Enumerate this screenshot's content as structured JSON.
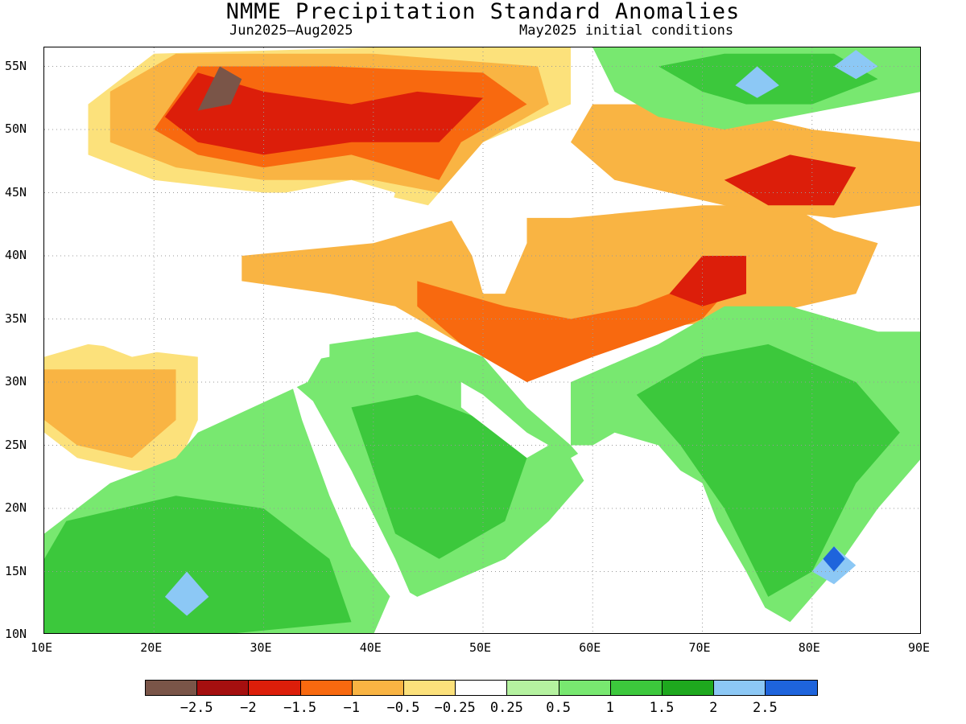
{
  "title": "NMME Precipitation Standard Anomalies",
  "subtitle_left": "Jun2025–Aug2025",
  "subtitle_right": "May2025 initial conditions",
  "axes": {
    "lon_ticks": [
      "10E",
      "20E",
      "30E",
      "40E",
      "50E",
      "60E",
      "70E",
      "80E",
      "90E"
    ],
    "lat_ticks": [
      "55N",
      "50N",
      "45N",
      "40N",
      "35N",
      "30N",
      "25N",
      "20N",
      "15N",
      "10N"
    ],
    "lon_range": [
      10,
      90
    ],
    "lat_range": [
      10,
      56.5
    ],
    "grid": "dotted"
  },
  "colorbar": {
    "colors": [
      "#7a5548",
      "#a50f0f",
      "#dc1e0a",
      "#f8690f",
      "#f9b443",
      "#fce17b",
      "#ffffff",
      "#b5f2a0",
      "#78e870",
      "#3cc83c",
      "#1ea81e",
      "#8cc8f5",
      "#1e64dc"
    ],
    "labels": [
      "−2.5",
      "−2",
      "−1.5",
      "−1",
      "−0.5",
      "−0.25",
      "0.25",
      "0.5",
      "1",
      "1.5",
      "2",
      "2.5"
    ]
  },
  "map_data": {
    "regions": [
      {
        "name": "dry-russia-ukraine",
        "color": "#fce17b",
        "polygon": [
          [
            14,
            52
          ],
          [
            20,
            56
          ],
          [
            40,
            56.5
          ],
          [
            58,
            56.5
          ],
          [
            58,
            52
          ],
          [
            50,
            49
          ],
          [
            45,
            44
          ],
          [
            40,
            45
          ],
          [
            30,
            45
          ],
          [
            20,
            46
          ],
          [
            14,
            48
          ]
        ]
      },
      {
        "name": "dry-russia-core",
        "color": "#f9b443",
        "polygon": [
          [
            16,
            53
          ],
          [
            22,
            56
          ],
          [
            40,
            56
          ],
          [
            55,
            55
          ],
          [
            56,
            52
          ],
          [
            50,
            49
          ],
          [
            46,
            45
          ],
          [
            40,
            46
          ],
          [
            30,
            46
          ],
          [
            22,
            47
          ],
          [
            16,
            49
          ]
        ]
      },
      {
        "name": "dry-east-europe-strong",
        "color": "#f8690f",
        "polygon": [
          [
            20,
            50
          ],
          [
            24,
            55
          ],
          [
            36,
            55
          ],
          [
            50,
            54.5
          ],
          [
            54,
            52
          ],
          [
            48,
            49
          ],
          [
            46,
            46
          ],
          [
            38,
            48
          ],
          [
            30,
            47
          ],
          [
            24,
            48
          ]
        ]
      },
      {
        "name": "dry-east-europe-stronger",
        "color": "#dc1e0a",
        "polygon": [
          [
            21,
            51
          ],
          [
            24,
            54.5
          ],
          [
            30,
            53
          ],
          [
            38,
            52
          ],
          [
            44,
            53
          ],
          [
            50,
            52.5
          ],
          [
            46,
            49
          ],
          [
            38,
            49
          ],
          [
            30,
            48
          ],
          [
            24,
            49
          ]
        ]
      },
      {
        "name": "dry-poland-max",
        "color": "#7a5548",
        "polygon": [
          [
            24,
            51.5
          ],
          [
            26,
            55
          ],
          [
            28,
            54
          ],
          [
            27,
            52
          ]
        ]
      },
      {
        "name": "dry-north-africa",
        "color": "#fce17b",
        "polygon": [
          [
            10,
            32
          ],
          [
            14,
            33
          ],
          [
            24,
            32
          ],
          [
            24,
            27
          ],
          [
            22,
            23
          ],
          [
            18,
            23
          ],
          [
            13,
            24
          ],
          [
            10,
            26
          ]
        ]
      },
      {
        "name": "dry-north-africa-core",
        "color": "#f9b443",
        "polygon": [
          [
            10,
            31
          ],
          [
            14,
            31
          ],
          [
            22,
            31
          ],
          [
            22,
            27
          ],
          [
            18,
            24
          ],
          [
            13,
            25
          ],
          [
            10,
            27
          ]
        ]
      },
      {
        "name": "dry-turkey-iran",
        "color": "#f9b443",
        "polygon": [
          [
            28,
            40
          ],
          [
            40,
            41
          ],
          [
            48,
            43
          ],
          [
            58,
            43
          ],
          [
            70,
            44
          ],
          [
            78,
            44
          ],
          [
            82,
            42
          ],
          [
            86,
            41
          ],
          [
            84,
            37
          ],
          [
            74,
            35
          ],
          [
            62,
            34
          ],
          [
            54,
            31
          ],
          [
            48,
            33
          ],
          [
            42,
            36
          ],
          [
            36,
            37
          ],
          [
            28,
            38
          ]
        ]
      },
      {
        "name": "dry-iran-core",
        "color": "#f8690f",
        "polygon": [
          [
            44,
            38
          ],
          [
            52,
            36
          ],
          [
            58,
            35
          ],
          [
            64,
            36
          ],
          [
            70,
            38
          ],
          [
            72,
            37
          ],
          [
            70,
            35
          ],
          [
            60,
            32
          ],
          [
            54,
            30
          ],
          [
            48,
            33
          ],
          [
            44,
            36
          ]
        ]
      },
      {
        "name": "dry-kazakh",
        "color": "#f9b443",
        "polygon": [
          [
            60,
            52
          ],
          [
            70,
            52
          ],
          [
            80,
            50
          ],
          [
            90,
            49
          ],
          [
            90,
            44
          ],
          [
            82,
            43
          ],
          [
            72,
            44
          ],
          [
            62,
            46
          ],
          [
            58,
            49
          ]
        ]
      },
      {
        "name": "dry-kazakh-strong",
        "color": "#dc1e0a",
        "polygon": [
          [
            72,
            46
          ],
          [
            78,
            48
          ],
          [
            84,
            47
          ],
          [
            82,
            44
          ],
          [
            76,
            44
          ]
        ]
      },
      {
        "name": "dry-tajik",
        "color": "#dc1e0a",
        "polygon": [
          [
            67,
            37
          ],
          [
            70,
            40
          ],
          [
            74,
            40
          ],
          [
            74,
            37
          ],
          [
            70,
            36
          ]
        ]
      },
      {
        "name": "wet-arabia",
        "color": "#78e870",
        "polygon": [
          [
            36,
            33
          ],
          [
            44,
            34
          ],
          [
            50,
            32
          ],
          [
            54,
            28
          ],
          [
            58,
            25
          ],
          [
            60,
            23
          ],
          [
            56,
            19
          ],
          [
            52,
            16
          ],
          [
            44,
            13
          ],
          [
            40,
            15
          ],
          [
            38,
            20
          ],
          [
            36,
            26
          ],
          [
            34,
            30
          ]
        ]
      },
      {
        "name": "wet-arabia-core",
        "color": "#3cc83c",
        "polygon": [
          [
            38,
            28
          ],
          [
            44,
            29
          ],
          [
            50,
            27
          ],
          [
            54,
            24
          ],
          [
            52,
            19
          ],
          [
            46,
            16
          ],
          [
            42,
            18
          ],
          [
            40,
            23
          ]
        ]
      },
      {
        "name": "wet-sudan",
        "color": "#78e870",
        "polygon": [
          [
            24,
            26
          ],
          [
            34,
            30
          ],
          [
            38,
            25
          ],
          [
            40,
            20
          ],
          [
            42,
            14
          ],
          [
            40,
            10
          ],
          [
            20,
            10
          ],
          [
            10,
            10
          ],
          [
            10,
            18
          ],
          [
            16,
            22
          ],
          [
            22,
            24
          ]
        ]
      },
      {
        "name": "wet-sudan-core",
        "color": "#3cc83c",
        "polygon": [
          [
            12,
            19
          ],
          [
            22,
            21
          ],
          [
            30,
            20
          ],
          [
            36,
            16
          ],
          [
            38,
            11
          ],
          [
            26,
            10
          ],
          [
            10,
            10
          ],
          [
            10,
            16
          ]
        ]
      },
      {
        "name": "wet-india",
        "color": "#78e870",
        "polygon": [
          [
            58,
            30
          ],
          [
            66,
            33
          ],
          [
            72,
            36
          ],
          [
            78,
            36
          ],
          [
            86,
            34
          ],
          [
            90,
            34
          ],
          [
            90,
            24
          ],
          [
            86,
            20
          ],
          [
            82,
            15
          ],
          [
            78,
            11
          ],
          [
            74,
            13
          ],
          [
            70,
            22
          ],
          [
            64,
            25
          ],
          [
            58,
            25
          ]
        ]
      },
      {
        "name": "wet-india-core",
        "color": "#3cc83c",
        "polygon": [
          [
            64,
            29
          ],
          [
            70,
            32
          ],
          [
            76,
            33
          ],
          [
            84,
            30
          ],
          [
            88,
            26
          ],
          [
            84,
            22
          ],
          [
            80,
            15
          ],
          [
            76,
            13
          ],
          [
            72,
            20
          ],
          [
            68,
            25
          ]
        ]
      },
      {
        "name": "wet-siberia",
        "color": "#78e870",
        "polygon": [
          [
            60,
            56.5
          ],
          [
            90,
            56.5
          ],
          [
            90,
            53
          ],
          [
            84,
            52
          ],
          [
            78,
            51
          ],
          [
            72,
            50
          ],
          [
            66,
            51
          ],
          [
            62,
            53
          ]
        ]
      },
      {
        "name": "wet-siberia-core",
        "color": "#3cc83c",
        "polygon": [
          [
            66,
            55
          ],
          [
            72,
            56
          ],
          [
            82,
            56
          ],
          [
            86,
            54
          ],
          [
            80,
            52
          ],
          [
            74,
            52
          ],
          [
            70,
            53
          ]
        ]
      },
      {
        "name": "wet-blue-1",
        "color": "#8cc8f5",
        "polygon": [
          [
            80,
            15
          ],
          [
            82,
            17
          ],
          [
            84,
            15.5
          ],
          [
            82,
            14
          ]
        ]
      },
      {
        "name": "wet-blue-2",
        "color": "#8cc8f5",
        "polygon": [
          [
            21,
            13
          ],
          [
            23,
            15
          ],
          [
            25,
            13
          ],
          [
            23,
            11.5
          ]
        ]
      },
      {
        "name": "wet-blue-3",
        "color": "#8cc8f5",
        "polygon": [
          [
            73,
            53.5
          ],
          [
            75,
            55
          ],
          [
            77,
            53.5
          ],
          [
            75,
            52.5
          ]
        ]
      },
      {
        "name": "wet-blue-4",
        "color": "#8cc8f5",
        "polygon": [
          [
            82,
            55
          ],
          [
            84,
            56.3
          ],
          [
            86,
            55
          ],
          [
            84,
            54
          ]
        ]
      },
      {
        "name": "wet-dark-blue",
        "color": "#1e64dc",
        "polygon": [
          [
            81,
            16
          ],
          [
            82,
            17
          ],
          [
            83,
            16
          ],
          [
            82,
            15
          ]
        ]
      },
      {
        "name": "blank-black-sea",
        "color": "#ffffff",
        "polygon": [
          [
            28,
            42
          ],
          [
            32,
            45
          ],
          [
            38,
            46
          ],
          [
            42,
            45
          ],
          [
            41,
            42
          ],
          [
            36,
            41
          ],
          [
            30,
            41
          ]
        ]
      },
      {
        "name": "blank-caspian",
        "color": "#ffffff",
        "polygon": [
          [
            47,
            46
          ],
          [
            50,
            47
          ],
          [
            54,
            45
          ],
          [
            54,
            41
          ],
          [
            52,
            37
          ],
          [
            50,
            37
          ],
          [
            49,
            40
          ],
          [
            47,
            43
          ]
        ]
      },
      {
        "name": "blank-mediterranean",
        "color": "#ffffff",
        "polygon": [
          [
            10,
            38
          ],
          [
            14,
            40
          ],
          [
            20,
            40
          ],
          [
            26,
            40
          ],
          [
            28,
            37
          ],
          [
            36,
            37
          ],
          [
            36,
            32
          ],
          [
            30,
            31
          ],
          [
            24,
            33
          ],
          [
            18,
            32
          ],
          [
            12,
            34
          ]
        ]
      },
      {
        "name": "blank-arabian-sea",
        "color": "#ffffff",
        "polygon": [
          [
            58,
            24
          ],
          [
            62,
            26
          ],
          [
            66,
            25
          ],
          [
            70,
            21
          ],
          [
            74,
            15
          ],
          [
            77,
            10
          ],
          [
            50,
            10
          ],
          [
            48,
            12
          ],
          [
            52,
            14
          ],
          [
            56,
            18
          ],
          [
            60,
            21
          ]
        ]
      },
      {
        "name": "blank-bay-bengal",
        "color": "#ffffff",
        "polygon": [
          [
            80,
            10
          ],
          [
            82,
            13
          ],
          [
            86,
            18
          ],
          [
            90,
            20
          ],
          [
            90,
            10
          ]
        ]
      },
      {
        "name": "blank-red-sea",
        "color": "#ffffff",
        "polygon": [
          [
            32.5,
            30
          ],
          [
            34.5,
            28.5
          ],
          [
            38,
            23
          ],
          [
            42,
            16
          ],
          [
            43.5,
            13
          ],
          [
            42,
            12.5
          ],
          [
            38,
            17
          ],
          [
            36,
            21
          ],
          [
            33.5,
            27
          ]
        ]
      },
      {
        "name": "blank-persian-gulf",
        "color": "#ffffff",
        "polygon": [
          [
            48,
            30
          ],
          [
            50,
            29
          ],
          [
            54,
            26
          ],
          [
            56,
            25
          ],
          [
            54,
            24
          ],
          [
            51,
            26
          ],
          [
            48,
            28
          ]
        ]
      }
    ]
  }
}
